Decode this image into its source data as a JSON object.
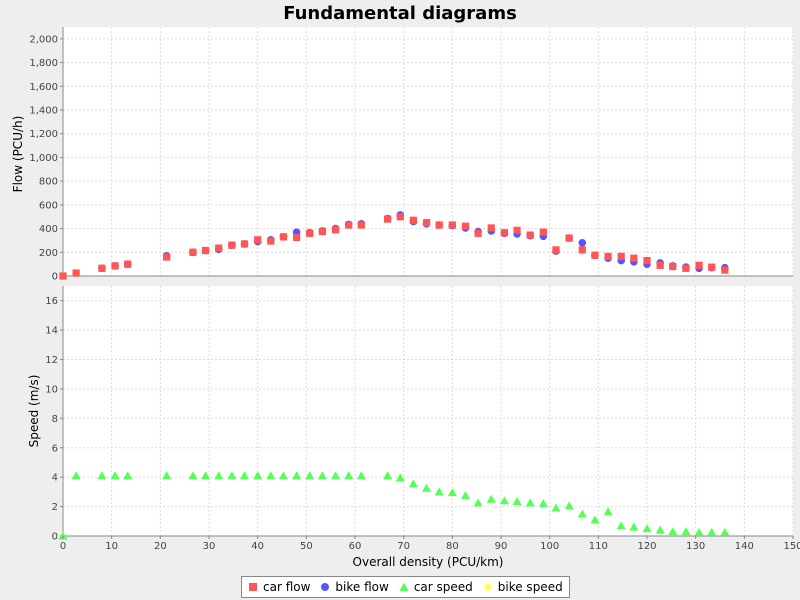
{
  "chart_data": {
    "type": "scatter",
    "title": "Fundamental diagrams",
    "xlabel": "Overall density (PCU/km)",
    "xlim": [
      0,
      150
    ],
    "xticks": [
      "0",
      "10",
      "20",
      "30",
      "40",
      "50",
      "60",
      "70",
      "80",
      "90",
      "100",
      "110",
      "120",
      "130",
      "140",
      "150"
    ],
    "grid": true,
    "legend_position": "bottom-center",
    "plots": [
      {
        "ylabel": "Flow (PCU/h)",
        "ylim": [
          0,
          2100
        ],
        "yticks": [
          "0",
          "200",
          "400",
          "600",
          "800",
          "1,000",
          "1,200",
          "1,400",
          "1,600",
          "1,800",
          "2,000"
        ],
        "series": [
          {
            "name": "bike flow",
            "color": "#5555ff",
            "marker": "circle",
            "x": [
              8,
              10.7,
              13.3,
              21.3,
              26.7,
              29.3,
              32,
              34.7,
              37.3,
              40,
              42.7,
              45.3,
              48,
              50.7,
              53.3,
              56,
              58.7,
              61.3,
              66.7,
              69.3,
              72,
              74.7,
              77.3,
              80,
              82.7,
              85.3,
              88,
              90.7,
              93.3,
              96,
              98.7,
              101.3,
              104,
              106.7,
              109.3,
              112,
              114.7,
              117.3,
              120,
              122.7,
              125.3,
              128,
              130.7,
              133.3,
              136
            ],
            "y": [
              65,
              85,
              100,
              170,
              200,
              215,
              225,
              260,
              270,
              290,
              305,
              330,
              370,
              365,
              380,
              400,
              435,
              440,
              485,
              515,
              460,
              440,
              430,
              425,
              405,
              375,
              380,
              360,
              355,
              340,
              335,
              210,
              320,
              280,
              175,
              150,
              130,
              120,
              100,
              110,
              85,
              75,
              65,
              70,
              70
            ]
          },
          {
            "name": "car flow",
            "color": "#ff5555",
            "marker": "square",
            "x": [
              0,
              2.7,
              8,
              10.7,
              13.3,
              21.3,
              26.7,
              29.3,
              32,
              34.7,
              37.3,
              40,
              42.7,
              45.3,
              48,
              50.7,
              53.3,
              56,
              58.7,
              61.3,
              66.7,
              69.3,
              72,
              74.7,
              77.3,
              80,
              82.7,
              85.3,
              88,
              90.7,
              93.3,
              96,
              98.7,
              101.3,
              104,
              106.7,
              109.3,
              112,
              114.7,
              117.3,
              120,
              122.7,
              125.3,
              128,
              130.7,
              133.3,
              136
            ],
            "y": [
              0,
              25,
              65,
              85,
              100,
              160,
              200,
              215,
              235,
              260,
              270,
              305,
              295,
              330,
              325,
              360,
              375,
              390,
              430,
              430,
              480,
              500,
              470,
              450,
              430,
              430,
              420,
              360,
              405,
              365,
              385,
              345,
              370,
              220,
              320,
              220,
              175,
              165,
              165,
              150,
              130,
              90,
              80,
              65,
              90,
              75,
              50
            ]
          }
        ]
      },
      {
        "ylabel": "Speed (m/s)",
        "ylim": [
          0,
          17
        ],
        "yticks": [
          "0",
          "2",
          "4",
          "6",
          "8",
          "10",
          "12",
          "14",
          "16"
        ],
        "series": [
          {
            "name": "car speed",
            "color": "#55ff55",
            "marker": "triangle",
            "x": [
              0,
              2.7,
              8,
              10.7,
              13.3,
              21.3,
              26.7,
              29.3,
              32,
              34.7,
              37.3,
              40,
              42.7,
              45.3,
              48,
              50.7,
              53.3,
              56,
              58.7,
              61.3,
              66.7,
              69.3,
              72,
              74.7,
              77.3,
              80,
              82.7,
              85.3,
              88,
              90.7,
              93.3,
              96,
              98.7,
              101.3,
              104,
              106.7,
              109.3,
              112,
              114.7,
              117.3,
              120,
              122.7,
              125.3,
              128,
              130.7,
              133.3,
              136
            ],
            "y": [
              0,
              4.1,
              4.1,
              4.1,
              4.1,
              4.1,
              4.1,
              4.1,
              4.1,
              4.1,
              4.1,
              4.1,
              4.1,
              4.1,
              4.1,
              4.1,
              4.1,
              4.1,
              4.1,
              4.1,
              4.1,
              3.95,
              3.55,
              3.25,
              3.0,
              2.95,
              2.75,
              2.25,
              2.5,
              2.4,
              2.35,
              2.25,
              2.2,
              1.9,
              2.05,
              1.5,
              1.1,
              1.65,
              0.7,
              0.6,
              0.5,
              0.4,
              0.3,
              0.3,
              0.25,
              0.25,
              0.25
            ]
          },
          {
            "name": "bike speed",
            "color": "#ffff55",
            "marker": "diamond",
            "x": [],
            "y": []
          }
        ]
      }
    ]
  },
  "legend": {
    "items": [
      {
        "label": "car flow",
        "color": "#ff5555",
        "marker": "square"
      },
      {
        "label": "bike flow",
        "color": "#5555ff",
        "marker": "circle"
      },
      {
        "label": "car speed",
        "color": "#55ff55",
        "marker": "triangle"
      },
      {
        "label": "bike speed",
        "color": "#ffff55",
        "marker": "diamond"
      }
    ]
  }
}
